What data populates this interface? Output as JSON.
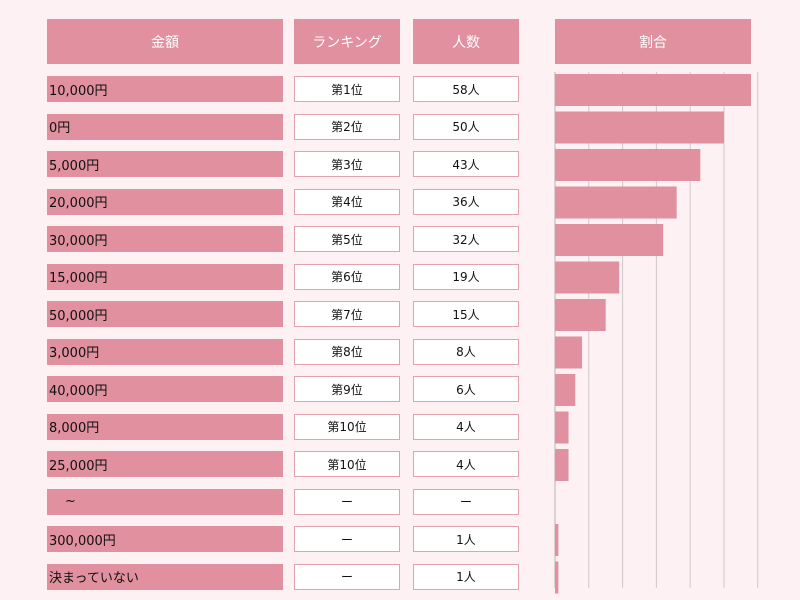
{
  "headers": {
    "amount": "金額",
    "rank": "ランキング",
    "count": "人数",
    "ratio": "割合"
  },
  "colors": {
    "header_bg": "#e0909e",
    "amount_bg": "#e0909e",
    "bar": "#e0909e",
    "cell_border": "#e2a3af",
    "page_bg": "#fdf1f4",
    "grid": "#cfc7c9"
  },
  "rows": [
    {
      "amount": "10,000円",
      "rank": "第1位",
      "count": "58人"
    },
    {
      "amount": "0円",
      "rank": "第2位",
      "count": "50人"
    },
    {
      "amount": "5,000円",
      "rank": "第3位",
      "count": "43人"
    },
    {
      "amount": "20,000円",
      "rank": "第4位",
      "count": "36人"
    },
    {
      "amount": "30,000円",
      "rank": "第5位",
      "count": "32人"
    },
    {
      "amount": "15,000円",
      "rank": "第6位",
      "count": "19人"
    },
    {
      "amount": "50,000円",
      "rank": "第7位",
      "count": "15人"
    },
    {
      "amount": "3,000円",
      "rank": "第8位",
      "count": "8人"
    },
    {
      "amount": "40,000円",
      "rank": "第9位",
      "count": "6人"
    },
    {
      "amount": "8,000円",
      "rank": "第10位",
      "count": "4人"
    },
    {
      "amount": "25,000円",
      "rank": "第10位",
      "count": "4人"
    },
    {
      "amount": "~",
      "rank": "ー",
      "count": "ー"
    },
    {
      "amount": "300,000円",
      "rank": "ー",
      "count": "1人"
    },
    {
      "amount": "決まっていない",
      "rank": "ー",
      "count": "1人"
    }
  ],
  "chart_data": {
    "type": "bar",
    "orientation": "horizontal",
    "categories": [
      "10,000円",
      "0円",
      "5,000円",
      "20,000円",
      "30,000円",
      "15,000円",
      "50,000円",
      "3,000円",
      "40,000円",
      "8,000円",
      "25,000円",
      "~",
      "300,000円",
      "決まっていない"
    ],
    "values": [
      58,
      50,
      43,
      36,
      32,
      19,
      15,
      8,
      6,
      4,
      4,
      0,
      1,
      1
    ],
    "title": "割合",
    "xlim": [
      0,
      60
    ],
    "grid": true
  }
}
